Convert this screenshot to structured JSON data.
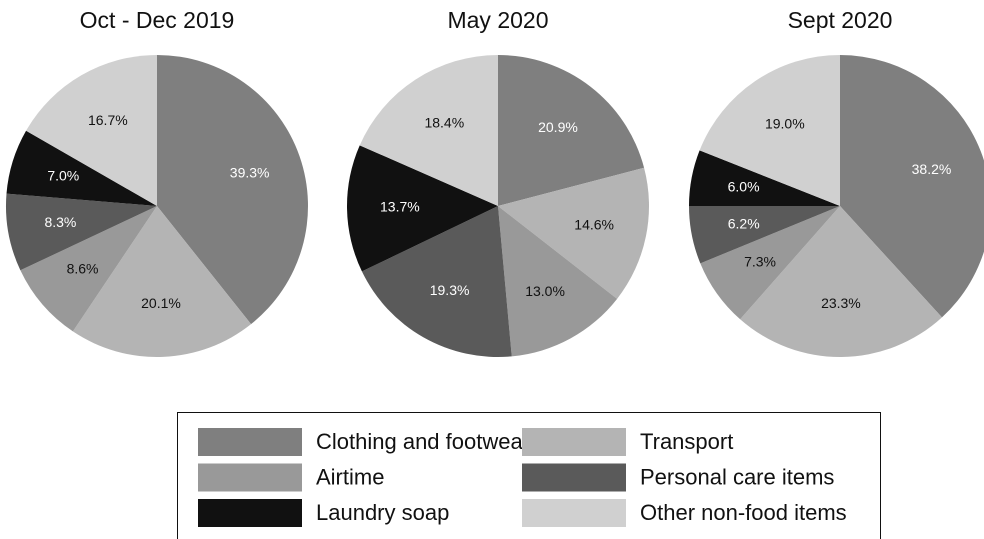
{
  "chart_data": [
    {
      "type": "pie",
      "title": "Oct - Dec 2019",
      "categories": [
        "Clothing and footwear",
        "Transport",
        "Airtime",
        "Personal care items",
        "Laundry soap",
        "Other non-food items"
      ],
      "values": [
        39.3,
        20.1,
        8.6,
        8.3,
        7.0,
        16.7
      ],
      "value_labels": [
        "39.3%",
        "20.1%",
        "8.6%",
        "8.3%",
        "7.0%",
        "16.7%"
      ],
      "colors": [
        "#7f7f7f",
        "#b4b4b4",
        "#999999",
        "#5a5a5a",
        "#111111",
        "#d0d0d0"
      ]
    },
    {
      "type": "pie",
      "title": "May 2020",
      "categories": [
        "Clothing and footwear",
        "Transport",
        "Airtime",
        "Personal care items",
        "Laundry soap",
        "Other non-food items"
      ],
      "values": [
        20.9,
        14.6,
        13.0,
        19.3,
        13.7,
        18.4
      ],
      "value_labels": [
        "20.9%",
        "14.6%",
        "13.0%",
        "19.3%",
        "13.7%",
        "18.4%"
      ],
      "colors": [
        "#7f7f7f",
        "#b4b4b4",
        "#999999",
        "#5a5a5a",
        "#111111",
        "#d0d0d0"
      ]
    },
    {
      "type": "pie",
      "title": "Sept 2020",
      "categories": [
        "Clothing and footwear",
        "Transport",
        "Airtime",
        "Personal care items",
        "Laundry soap",
        "Other non-food items"
      ],
      "values": [
        38.2,
        23.3,
        7.3,
        6.2,
        6.0,
        19.0
      ],
      "value_labels": [
        "38.2%",
        "23.3%",
        "7.3%",
        "6.2%",
        "6.0%",
        "19.0%"
      ],
      "colors": [
        "#7f7f7f",
        "#b4b4b4",
        "#999999",
        "#5a5a5a",
        "#111111",
        "#d0d0d0"
      ]
    }
  ]
}
